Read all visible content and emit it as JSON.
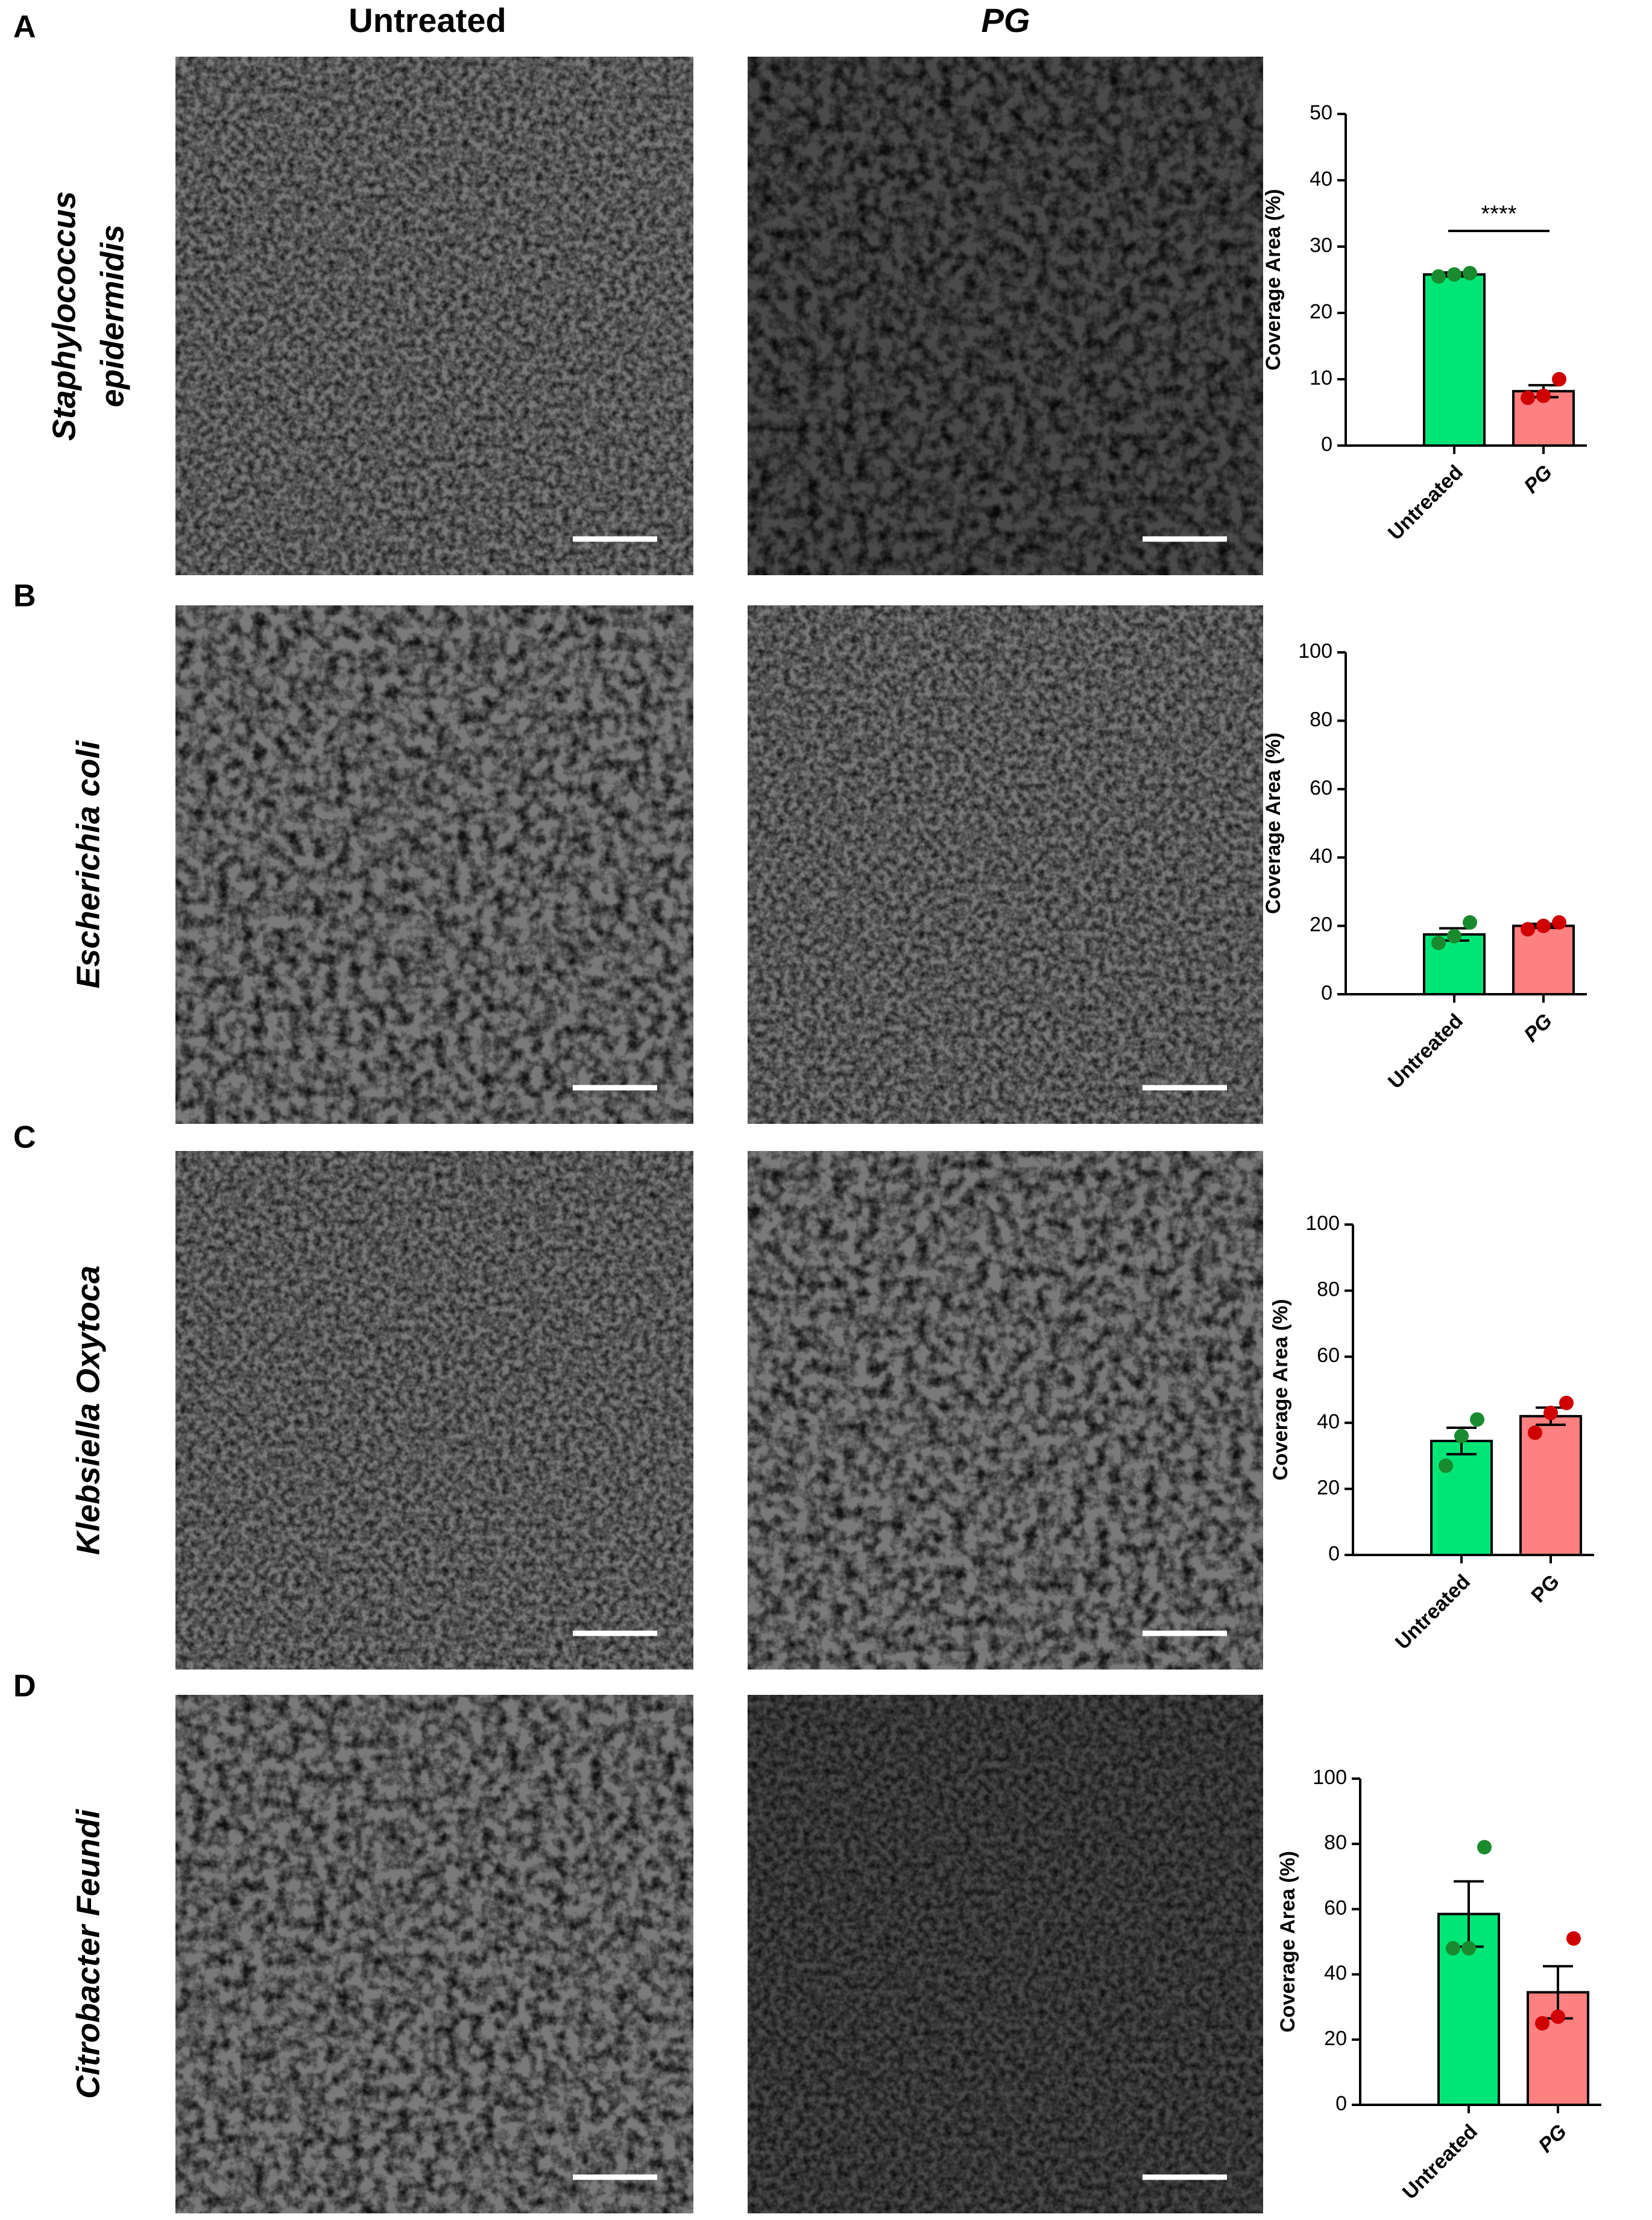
{
  "column_headers": [
    "Untreated",
    "PG"
  ],
  "panels": [
    {
      "letter": "A",
      "species": [
        "Staphylococcus",
        "epidermidis"
      ]
    },
    {
      "letter": "B",
      "species": [
        "Escherichia coli"
      ]
    },
    {
      "letter": "C",
      "species": [
        "Klebsiella Oxytoca"
      ]
    },
    {
      "letter": "D",
      "species": [
        "Citrobacter Feundi"
      ]
    }
  ],
  "chart_data": [
    {
      "type": "bar",
      "ylabel": "Coverage Area (%)",
      "categories": [
        "Untreated",
        "PG"
      ],
      "category_styles": [
        "normal",
        "italic"
      ],
      "values": [
        25.8,
        8.2
      ],
      "errors": [
        0.3,
        0.9
      ],
      "points": [
        [
          25.5,
          25.8,
          26.0
        ],
        [
          7.2,
          7.5,
          10.0
        ]
      ],
      "colors": [
        "#00e676",
        "#ff8080"
      ],
      "point_colors": [
        "#1a8a2e",
        "#d00000"
      ],
      "ylim": [
        0,
        50
      ],
      "yticks": [
        0,
        10,
        20,
        30,
        40,
        50
      ],
      "annotations": [
        "****"
      ]
    },
    {
      "type": "bar",
      "ylabel": "Coverage Area (%)",
      "categories": [
        "Untreated",
        "PG"
      ],
      "category_styles": [
        "normal",
        "italic"
      ],
      "values": [
        17.5,
        20.0
      ],
      "errors": [
        1.8,
        0.6
      ],
      "points": [
        [
          15,
          17,
          21
        ],
        [
          19,
          20,
          21
        ]
      ],
      "colors": [
        "#00e676",
        "#ff8080"
      ],
      "point_colors": [
        "#1a8a2e",
        "#d00000"
      ],
      "ylim": [
        0,
        100
      ],
      "yticks": [
        0,
        20,
        40,
        60,
        80,
        100
      ]
    },
    {
      "type": "bar",
      "ylabel": "Coverage Area (%)",
      "categories": [
        "Untreated",
        "PG"
      ],
      "category_styles": [
        "normal",
        "normal"
      ],
      "values": [
        34.5,
        42.0
      ],
      "errors": [
        4.0,
        2.6
      ],
      "points": [
        [
          27,
          36,
          41
        ],
        [
          37,
          43,
          46
        ]
      ],
      "colors": [
        "#00e676",
        "#ff8080"
      ],
      "point_colors": [
        "#1a8a2e",
        "#d00000"
      ],
      "ylim": [
        0,
        100
      ],
      "yticks": [
        0,
        20,
        40,
        60,
        80,
        100
      ]
    },
    {
      "type": "bar",
      "ylabel": "Coverage Area (%)",
      "categories": [
        "Untreated",
        "PG"
      ],
      "category_styles": [
        "normal",
        "italic"
      ],
      "values": [
        58.5,
        34.5
      ],
      "errors": [
        10.0,
        8.0
      ],
      "points": [
        [
          48,
          48,
          79
        ],
        [
          25,
          27,
          51
        ]
      ],
      "colors": [
        "#00e676",
        "#ff8080"
      ],
      "point_colors": [
        "#1a8a2e",
        "#d00000"
      ],
      "ylim": [
        0,
        100
      ],
      "yticks": [
        0,
        20,
        40,
        60,
        80,
        100
      ]
    }
  ]
}
